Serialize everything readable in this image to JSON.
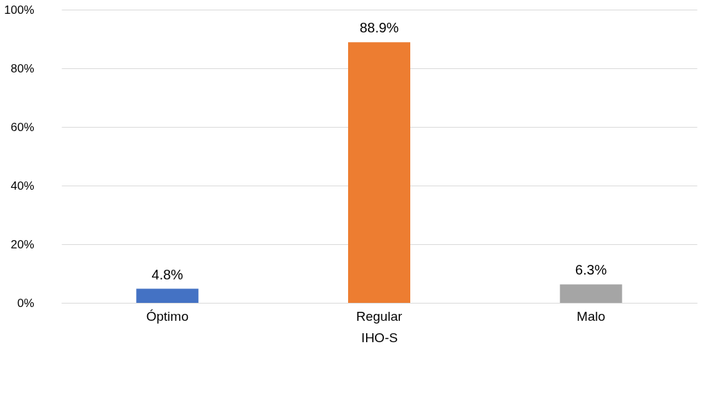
{
  "chart_data": {
    "type": "bar",
    "xlabel": "IHO-S",
    "categories": [
      "Óptimo",
      "Regular",
      "Malo"
    ],
    "values": [
      4.8,
      88.9,
      6.3
    ],
    "colors": [
      "#4472c4",
      "#ed7d31",
      "#a5a5a5"
    ],
    "value_labels": [
      "4.8%",
      "88.9%",
      "6.3%"
    ],
    "ylim": [
      0,
      100
    ],
    "yticks": [
      {
        "value": 0,
        "label": "0%"
      },
      {
        "value": 20,
        "label": "20%"
      },
      {
        "value": 40,
        "label": "40%"
      },
      {
        "value": 60,
        "label": "60%"
      },
      {
        "value": 80,
        "label": "80%"
      },
      {
        "value": 100,
        "label": "100%"
      }
    ],
    "grid": "y",
    "legend": false
  }
}
